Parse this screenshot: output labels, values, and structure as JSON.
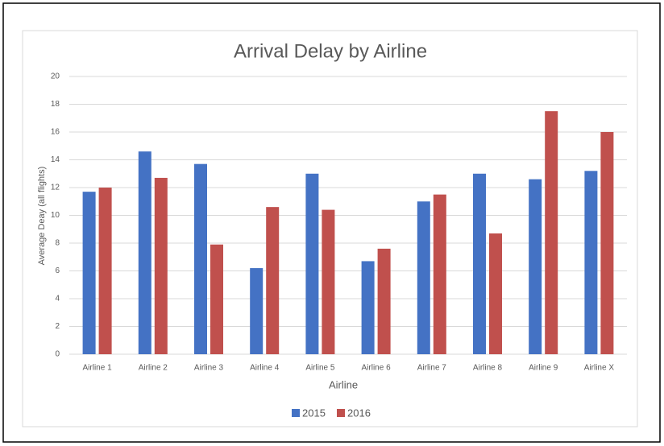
{
  "chart_data": {
    "type": "bar",
    "title": "Arrival Delay by Airline",
    "x_label": "Airline",
    "y_label": "Average Deay (all flights)",
    "categories": [
      "Airline 1",
      "Airline 2",
      "Airline 3",
      "Airline 4",
      "Airline 5",
      "Airline 6",
      "Airline 7",
      "Airline 8",
      "Airline 9",
      "Airline X"
    ],
    "series": [
      {
        "name": "2015",
        "color": "#4472c4",
        "values": [
          11.7,
          14.6,
          13.7,
          6.2,
          13.0,
          6.7,
          11.0,
          13.0,
          12.6,
          13.2
        ]
      },
      {
        "name": "2016",
        "color": "#c0504d",
        "values": [
          12.0,
          12.7,
          7.9,
          10.6,
          10.4,
          7.6,
          11.5,
          8.7,
          17.5,
          16.0
        ]
      }
    ],
    "ylim": [
      0,
      20
    ],
    "yticks": [
      0,
      2,
      4,
      6,
      8,
      10,
      12,
      14,
      16,
      18,
      20
    ],
    "grid": true,
    "legend": "bottom"
  }
}
